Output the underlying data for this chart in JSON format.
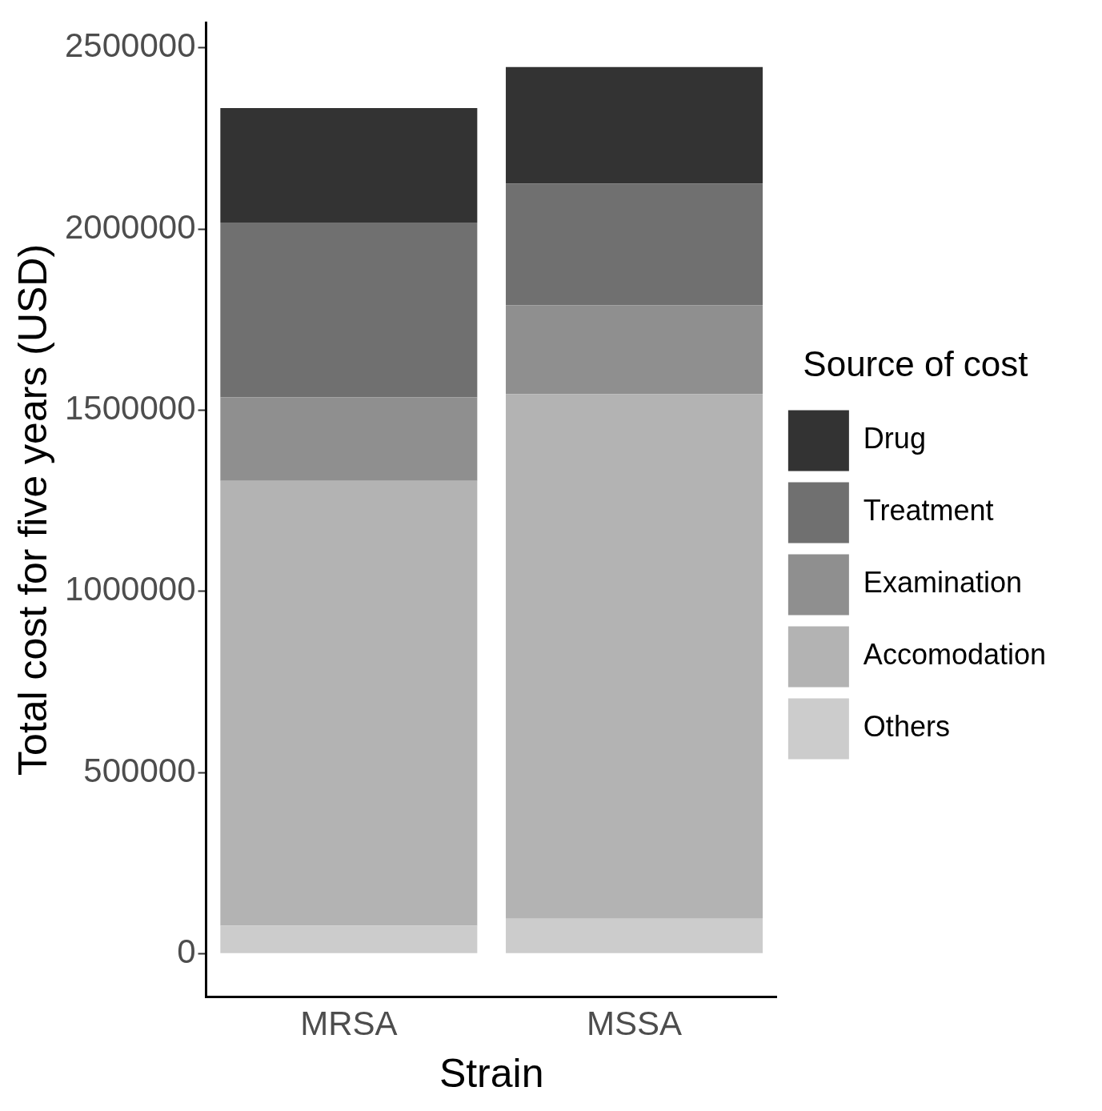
{
  "chart_data": {
    "type": "bar",
    "stacked": true,
    "xlabel": "Strain",
    "ylabel": "Total cost for five years (USD)",
    "legend_title": "Source of cost",
    "legend": "right",
    "grid": false,
    "categories": [
      "MRSA",
      "MSSA"
    ],
    "ylim": [
      -120000,
      2570000
    ],
    "yticks": [
      0,
      500000,
      1000000,
      1500000,
      2000000,
      2500000
    ],
    "series": [
      {
        "name": "Others",
        "color": "#cccccc",
        "values": [
          77000,
          96000
        ]
      },
      {
        "name": "Accomodation",
        "color": "#b3b3b3",
        "values": [
          1228000,
          1448000
        ]
      },
      {
        "name": "Examination",
        "color": "#8f8f8f",
        "values": [
          230000,
          246000
        ]
      },
      {
        "name": "Treatment",
        "color": "#707070",
        "values": [
          483000,
          335000
        ]
      },
      {
        "name": "Drug",
        "color": "#333333",
        "values": [
          316000,
          322000
        ]
      }
    ]
  }
}
